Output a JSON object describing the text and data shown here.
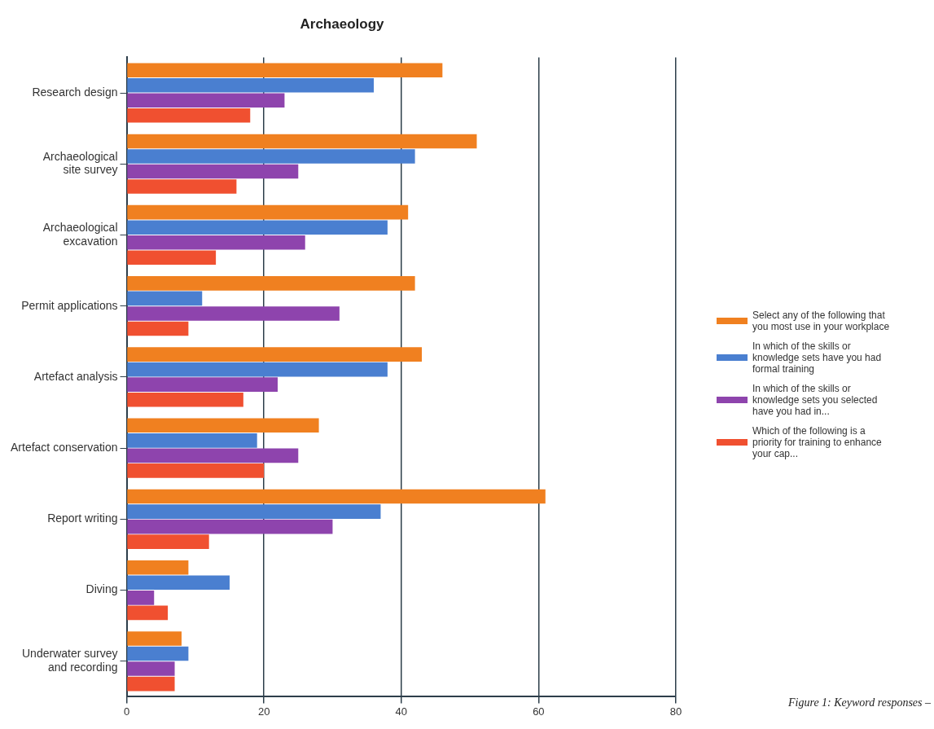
{
  "chart_data": {
    "type": "bar",
    "orientation": "horizontal",
    "title": "Archaeology",
    "categories": [
      "Research design",
      "Archaeological\nsite survey",
      "Archaeological\nexcavation",
      "Permit applications",
      "Artefact analysis",
      "Artefact conservation",
      "Report writing",
      "Diving",
      "Underwater survey\nand recording"
    ],
    "series": [
      {
        "name": "Select any of the following that you most use in your workplace",
        "color": "#f08020",
        "values": [
          46,
          51,
          41,
          42,
          43,
          28,
          61,
          9,
          8
        ]
      },
      {
        "name": "In which of the skills or knowledge sets have you had formal training",
        "color": "#4a7fd0",
        "values": [
          36,
          42,
          38,
          11,
          38,
          19,
          37,
          15,
          9
        ]
      },
      {
        "name": "In which of the skills or knowledge sets you selected have you had in...",
        "color": "#8e44ad",
        "values": [
          23,
          25,
          26,
          31,
          22,
          25,
          30,
          4,
          7
        ]
      },
      {
        "name": "Which of the following is a priority for training to enhance your cap...",
        "color": "#f05030",
        "values": [
          18,
          16,
          13,
          9,
          17,
          20,
          12,
          6,
          7
        ]
      }
    ],
    "xlim": [
      0,
      80
    ],
    "xticks": [
      0,
      20,
      40,
      60,
      80
    ],
    "grid": "x",
    "legend": "right",
    "annotations": [
      "Figure 1: Keyword responses –"
    ]
  }
}
